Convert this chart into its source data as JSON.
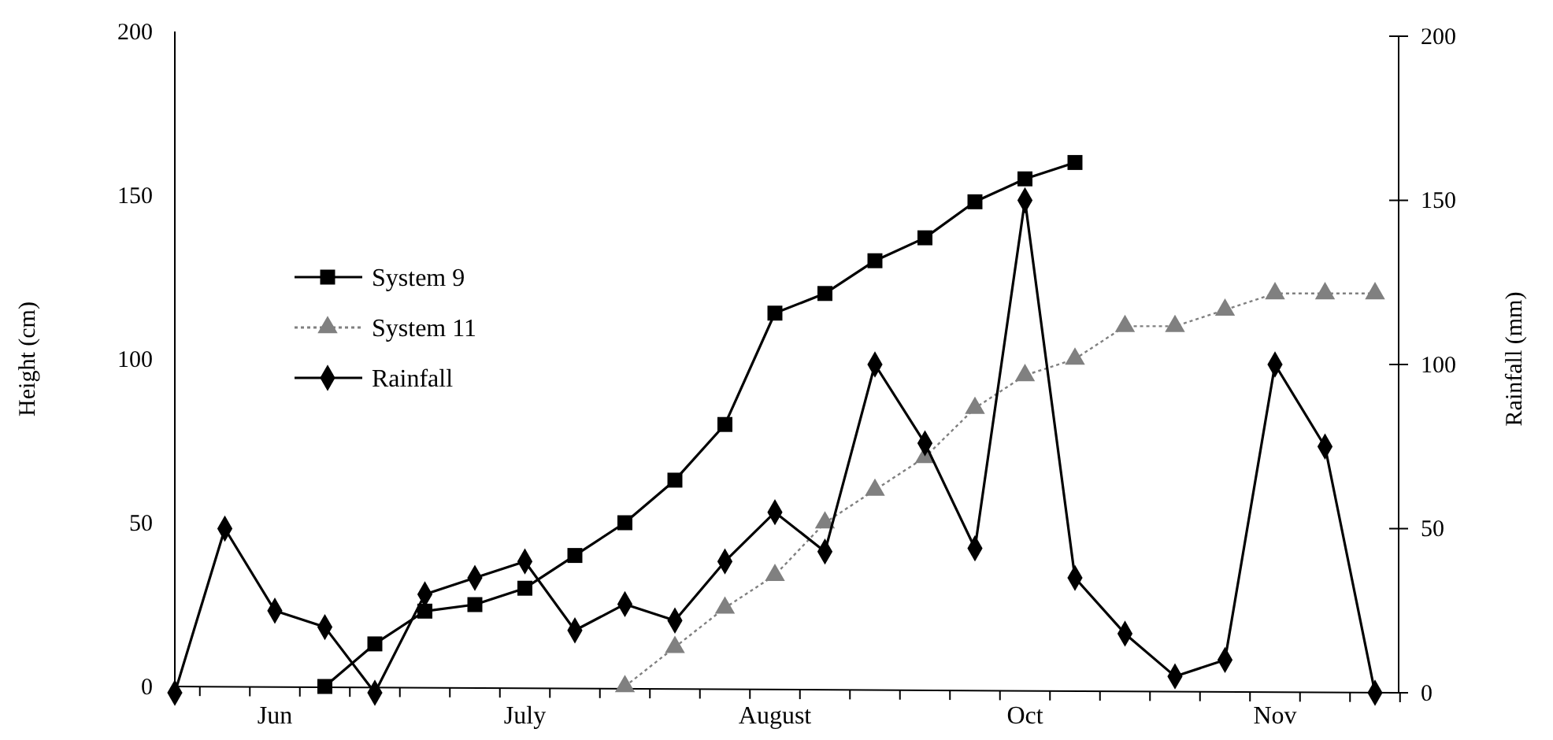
{
  "chart_data": {
    "type": "line",
    "ylabel": "Height (cm)",
    "y2label": "Rainfall (mm)",
    "categories": [
      null,
      null,
      "Jun",
      null,
      null,
      null,
      null,
      "July",
      null,
      null,
      null,
      null,
      "August",
      null,
      null,
      null,
      null,
      "Oct",
      null,
      null,
      null,
      null,
      "Nov",
      null,
      null
    ],
    "ylim": [
      0,
      200
    ],
    "yticks": [
      0,
      50,
      100,
      150,
      200
    ],
    "y2lim": [
      0,
      200
    ],
    "y2ticks": [
      0,
      50,
      100,
      150,
      200
    ],
    "grid": false,
    "legend": "top left",
    "series": [
      {
        "name": "System 9",
        "color": "#000000",
        "marker": "square",
        "line_style": "solid",
        "values": [
          null,
          null,
          null,
          0,
          13,
          23,
          25,
          30,
          40,
          50,
          63,
          80,
          114,
          120,
          130,
          137,
          148,
          155,
          160,
          null,
          null,
          null,
          null,
          null,
          null
        ]
      },
      {
        "name": "System 11",
        "color": "#808080",
        "marker": "triangle",
        "line_style": "dotted",
        "values": [
          null,
          null,
          null,
          null,
          null,
          null,
          null,
          null,
          null,
          0,
          12,
          24,
          34,
          50,
          60,
          70,
          85,
          95,
          100,
          110,
          110,
          115,
          120,
          120,
          120
        ]
      },
      {
        "name": "Rainfall",
        "color": "#000000",
        "marker": "diamond",
        "line_style": "solid",
        "axis": "y2",
        "values": [
          0,
          50,
          25,
          20,
          0,
          30,
          35,
          40,
          19,
          27,
          22,
          40,
          55,
          43,
          100,
          76,
          44,
          150,
          35,
          18,
          5,
          10,
          100,
          75,
          0
        ]
      }
    ]
  }
}
